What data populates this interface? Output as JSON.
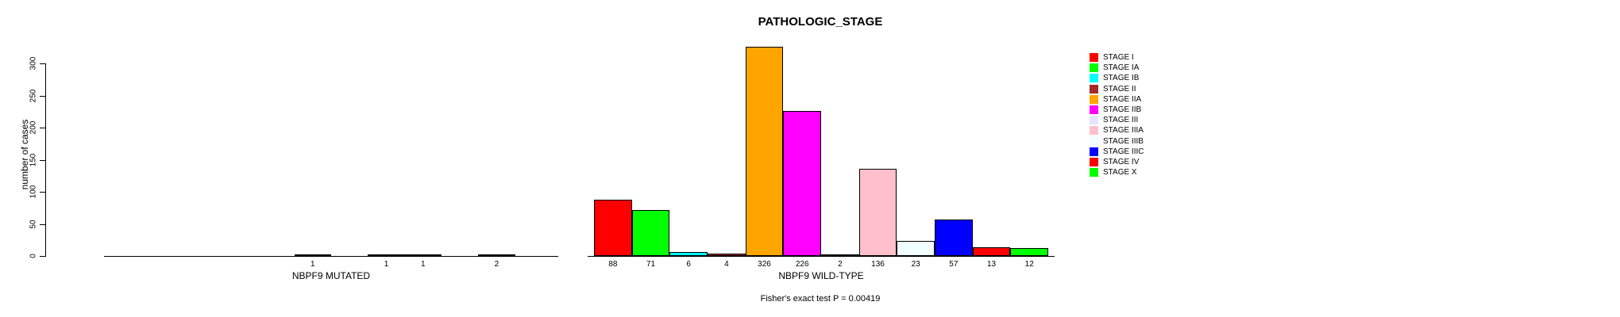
{
  "chart_data": {
    "type": "bar",
    "title": "PATHOLOGIC_STAGE",
    "ylabel": "number of cases",
    "xlabel": "",
    "ylim": [
      0,
      300
    ],
    "y_ticks": [
      0,
      50,
      100,
      150,
      200,
      250,
      300
    ],
    "grid": false,
    "legend_position": "right",
    "categories": [
      "STAGE I",
      "STAGE IA",
      "STAGE IB",
      "STAGE II",
      "STAGE IIA",
      "STAGE IIB",
      "STAGE III",
      "STAGE IIIA",
      "STAGE IIIB",
      "STAGE IIIC",
      "STAGE IV",
      "STAGE X"
    ],
    "colors": [
      "#FF0000",
      "#00FF00",
      "#00FFFF",
      "#A52A2A",
      "#FFA500",
      "#FF00FF",
      "#E6E6FA",
      "#FFC0CB",
      "#F0FFFF",
      "#0000FF",
      "#FF0000",
      "#00FF00"
    ],
    "groups": [
      {
        "label": "NBPF9 MUTATED",
        "values": [
          0,
          0,
          0,
          0,
          0,
          1,
          0,
          1,
          1,
          0,
          2,
          0
        ]
      },
      {
        "label": "NBPF9 WILD-TYPE",
        "values": [
          88,
          71,
          6,
          4,
          326,
          226,
          2,
          136,
          23,
          57,
          13,
          12
        ]
      }
    ],
    "bar_value_labels": "count shown under each bar, omitted when value is 0",
    "annotation": "Fisher's exact test P = 0.00419"
  }
}
